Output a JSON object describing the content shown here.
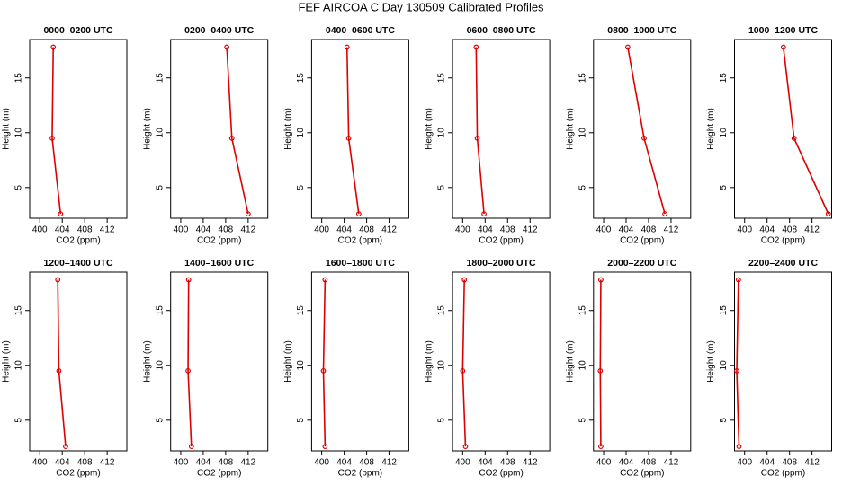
{
  "title": "FEF AIRCOA C  Day 130509  Calibrated Profiles",
  "chart_data": [
    {
      "type": "line",
      "title": "0000–0200 UTC",
      "xlabel": "CO2 (ppm)",
      "ylabel": "Height (m)",
      "x": [
        402.4,
        402.2,
        403.7
      ],
      "values": [
        17.8,
        9.5,
        2.6
      ],
      "color": "#dd0000",
      "xlim": [
        398.2,
        415.5
      ],
      "ylim": [
        2.2,
        18.5
      ],
      "xticks": [
        400,
        404,
        408,
        412
      ],
      "yticks": [
        5,
        10,
        15
      ]
    },
    {
      "type": "line",
      "title": "0200–0400 UTC",
      "xlabel": "CO2 (ppm)",
      "ylabel": "Height (m)",
      "x": [
        408.2,
        409.1,
        412.0
      ],
      "values": [
        17.8,
        9.5,
        2.6
      ],
      "color": "#dd0000",
      "xlim": [
        398.2,
        415.5
      ],
      "ylim": [
        2.2,
        18.5
      ],
      "xticks": [
        400,
        404,
        408,
        412
      ],
      "yticks": [
        5,
        10,
        15
      ]
    },
    {
      "type": "line",
      "title": "0400–0600 UTC",
      "xlabel": "CO2 (ppm)",
      "ylabel": "Height (m)",
      "x": [
        404.5,
        404.8,
        406.6
      ],
      "values": [
        17.8,
        9.5,
        2.6
      ],
      "color": "#dd0000",
      "xlim": [
        398.2,
        415.5
      ],
      "ylim": [
        2.2,
        18.5
      ],
      "xticks": [
        400,
        404,
        408,
        412
      ],
      "yticks": [
        5,
        10,
        15
      ]
    },
    {
      "type": "line",
      "title": "0600–0800 UTC",
      "xlabel": "CO2 (ppm)",
      "ylabel": "Height (m)",
      "x": [
        402.4,
        402.6,
        403.8
      ],
      "values": [
        17.8,
        9.5,
        2.6
      ],
      "color": "#dd0000",
      "xlim": [
        398.2,
        415.5
      ],
      "ylim": [
        2.2,
        18.5
      ],
      "xticks": [
        400,
        404,
        408,
        412
      ],
      "yticks": [
        5,
        10,
        15
      ]
    },
    {
      "type": "line",
      "title": "0800–1000 UTC",
      "xlabel": "CO2 (ppm)",
      "ylabel": "Height (m)",
      "x": [
        404.3,
        407.2,
        410.9
      ],
      "values": [
        17.8,
        9.5,
        2.6
      ],
      "color": "#dd0000",
      "xlim": [
        398.2,
        415.5
      ],
      "ylim": [
        2.2,
        18.5
      ],
      "xticks": [
        400,
        404,
        408,
        412
      ],
      "yticks": [
        5,
        10,
        15
      ]
    },
    {
      "type": "line",
      "title": "1000–1200 UTC",
      "xlabel": "CO2 (ppm)",
      "ylabel": "Height (m)",
      "x": [
        406.9,
        408.8,
        414.9
      ],
      "values": [
        17.8,
        9.5,
        2.6
      ],
      "color": "#dd0000",
      "xlim": [
        398.2,
        415.5
      ],
      "ylim": [
        2.2,
        18.5
      ],
      "xticks": [
        400,
        404,
        408,
        412
      ],
      "yticks": [
        5,
        10,
        15
      ]
    },
    {
      "type": "line",
      "title": "1200–1400 UTC",
      "xlabel": "CO2 (ppm)",
      "ylabel": "Height (m)",
      "x": [
        403.2,
        403.4,
        404.6
      ],
      "values": [
        17.8,
        9.5,
        2.6
      ],
      "color": "#dd0000",
      "xlim": [
        398.2,
        415.5
      ],
      "ylim": [
        2.2,
        18.5
      ],
      "xticks": [
        400,
        404,
        408,
        412
      ],
      "yticks": [
        5,
        10,
        15
      ]
    },
    {
      "type": "line",
      "title": "1400–1600 UTC",
      "xlabel": "CO2 (ppm)",
      "ylabel": "Height (m)",
      "x": [
        401.4,
        401.3,
        401.9
      ],
      "values": [
        17.8,
        9.5,
        2.6
      ],
      "color": "#dd0000",
      "xlim": [
        398.2,
        415.5
      ],
      "ylim": [
        2.2,
        18.5
      ],
      "xticks": [
        400,
        404,
        408,
        412
      ],
      "yticks": [
        5,
        10,
        15
      ]
    },
    {
      "type": "line",
      "title": "1600–1800 UTC",
      "xlabel": "CO2 (ppm)",
      "ylabel": "Height (m)",
      "x": [
        400.6,
        400.3,
        400.6
      ],
      "values": [
        17.8,
        9.5,
        2.6
      ],
      "color": "#dd0000",
      "xlim": [
        398.2,
        415.5
      ],
      "ylim": [
        2.2,
        18.5
      ],
      "xticks": [
        400,
        404,
        408,
        412
      ],
      "yticks": [
        5,
        10,
        15
      ]
    },
    {
      "type": "line",
      "title": "1800–2000 UTC",
      "xlabel": "CO2 (ppm)",
      "ylabel": "Height (m)",
      "x": [
        400.3,
        400.0,
        400.5
      ],
      "values": [
        17.8,
        9.5,
        2.6
      ],
      "color": "#dd0000",
      "xlim": [
        398.2,
        415.5
      ],
      "ylim": [
        2.2,
        18.5
      ],
      "xticks": [
        400,
        404,
        408,
        412
      ],
      "yticks": [
        5,
        10,
        15
      ]
    },
    {
      "type": "line",
      "title": "2000–2200 UTC",
      "xlabel": "CO2 (ppm)",
      "ylabel": "Height (m)",
      "x": [
        399.5,
        399.4,
        399.5
      ],
      "values": [
        17.8,
        9.5,
        2.6
      ],
      "color": "#dd0000",
      "xlim": [
        398.2,
        415.5
      ],
      "ylim": [
        2.2,
        18.5
      ],
      "xticks": [
        400,
        404,
        408,
        412
      ],
      "yticks": [
        5,
        10,
        15
      ]
    },
    {
      "type": "line",
      "title": "2200–2400 UTC",
      "xlabel": "CO2 (ppm)",
      "ylabel": "Height (m)",
      "x": [
        398.9,
        398.6,
        399.0
      ],
      "values": [
        17.8,
        9.5,
        2.6
      ],
      "color": "#dd0000",
      "xlim": [
        398.2,
        415.5
      ],
      "ylim": [
        2.2,
        18.5
      ],
      "xticks": [
        400,
        404,
        408,
        412
      ],
      "yticks": [
        5,
        10,
        15
      ]
    }
  ]
}
